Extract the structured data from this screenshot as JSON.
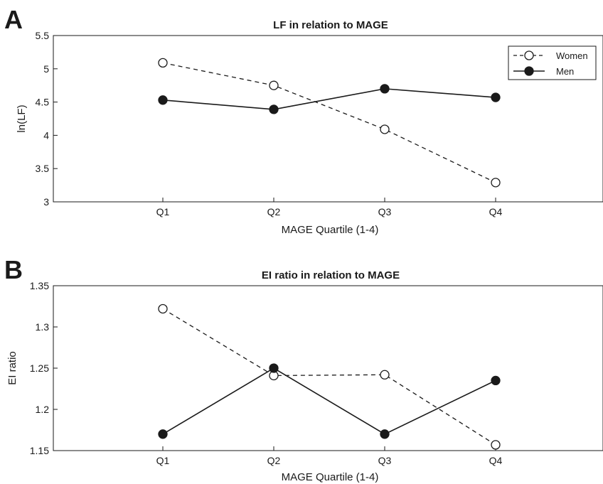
{
  "chart_data": [
    {
      "panel_label": "A",
      "type": "line",
      "title": "LF in relation to MAGE",
      "xlabel": "MAGE Quartile (1-4)",
      "ylabel": "ln(LF)",
      "categories": [
        "Q1",
        "Q2",
        "Q3",
        "Q4"
      ],
      "ylim": [
        3,
        5.5
      ],
      "yticks": [
        "3",
        "3.5",
        "4",
        "4.5",
        "5",
        "5.5"
      ],
      "legend_position": "top-right",
      "grid": false,
      "series": [
        {
          "name": "Women",
          "style": "dashed",
          "marker": "open-circle",
          "values": [
            5.09,
            4.75,
            4.09,
            3.29
          ]
        },
        {
          "name": "Men",
          "style": "solid",
          "marker": "filled-circle",
          "values": [
            4.53,
            4.39,
            4.7,
            4.57
          ]
        }
      ]
    },
    {
      "panel_label": "B",
      "type": "line",
      "title": "EI ratio in relation to MAGE",
      "xlabel": "MAGE Quartile (1-4)",
      "ylabel": "EI ratio",
      "categories": [
        "Q1",
        "Q2",
        "Q3",
        "Q4"
      ],
      "ylim": [
        1.15,
        1.35
      ],
      "yticks": [
        "1.15",
        "1.2",
        "1.25",
        "1.3",
        "1.35"
      ],
      "grid": false,
      "series": [
        {
          "name": "Women",
          "style": "dashed",
          "marker": "open-circle",
          "values": [
            1.322,
            1.241,
            1.242,
            1.157
          ]
        },
        {
          "name": "Men",
          "style": "solid",
          "marker": "filled-circle",
          "values": [
            1.17,
            1.25,
            1.17,
            1.235
          ]
        }
      ]
    }
  ]
}
